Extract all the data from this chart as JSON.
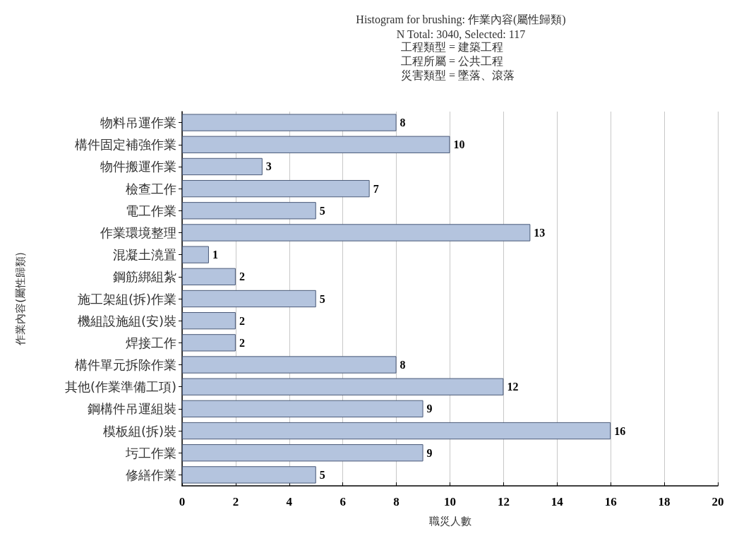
{
  "chart_data": {
    "type": "bar",
    "orientation": "horizontal",
    "title": "Histogram for brushing: 作業內容(屬性歸類)",
    "subtitle": "N Total: 3040, Selected: 117",
    "annotations": [
      "工程類型 = 建築工程",
      "工程所屬 = 公共工程",
      "災害類型 = 墜落、滾落"
    ],
    "xlabel": "職災人數",
    "ylabel": "作業內容(屬性歸類)",
    "categories": [
      "物料吊運作業",
      "構件固定補強作業",
      "物件搬運作業",
      "檢查工作",
      "電工作業",
      "作業環境整理",
      "混凝土澆置",
      "鋼筋綁組紮",
      "施工架組(拆)作業",
      "機組設施組(安)裝",
      "焊接工作",
      "構件單元拆除作業",
      "其他(作業準備工項)",
      "鋼構件吊運組裝",
      "模板組(拆)裝",
      "圬工作業",
      "修繕作業"
    ],
    "values": [
      8,
      10,
      3,
      7,
      5,
      13,
      1,
      2,
      5,
      2,
      2,
      8,
      12,
      9,
      16,
      9,
      5
    ],
    "color": "#b4c4de",
    "xlim": [
      0,
      20
    ],
    "xticks": [
      0,
      2,
      4,
      6,
      8,
      10,
      12,
      14,
      16,
      18,
      20
    ],
    "grid": "x",
    "data_labels": true
  }
}
